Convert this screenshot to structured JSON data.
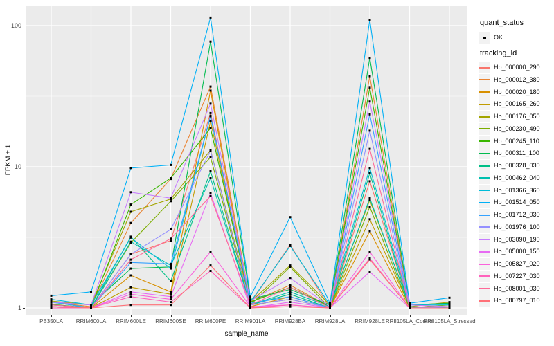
{
  "chart_data": {
    "type": "line",
    "title": "",
    "xlabel": "sample_name",
    "ylabel": "FPKM + 1",
    "y_scale": "log10",
    "y_ticks": [
      1,
      10,
      100
    ],
    "y_minor_gridlines": [
      3.162,
      31.62
    ],
    "ylim": [
      0.89,
      140
    ],
    "grid": "on",
    "panel_bg": "#EBEBEB",
    "grid_color": "#FFFFFF",
    "point_color": "#000000",
    "axis_text_color": "#4D4D4D",
    "legend_position": "right",
    "legend": {
      "quant_status": {
        "title": "quant_status",
        "entries": [
          "OK"
        ]
      },
      "tracking_id": {
        "title": "tracking_id"
      }
    },
    "categories": [
      "PB350LA",
      "RRIM600LA",
      "RRIM600LE",
      "RRIM600SE",
      "RRIM600PE",
      "RRIM901LA",
      "RRIM928BA",
      "RRIM928LA",
      "RRIM928LE",
      "RRII105LA_Control",
      "RRII105LA_Stressed"
    ],
    "series": [
      {
        "name": "Hb_000000_290",
        "color": "#F8766D",
        "values": [
          1.05,
          1.0,
          2.4,
          3.0,
          24.0,
          1.08,
          2.8,
          1.0,
          7.9,
          1.02,
          1.0
        ]
      },
      {
        "name": "Hb_000012_380",
        "color": "#EA8331",
        "values": [
          1.1,
          1.02,
          4.0,
          8.2,
          37.0,
          1.1,
          1.45,
          1.02,
          43.8,
          1.05,
          1.02
        ]
      },
      {
        "name": "Hb_000020_180",
        "color": "#D89000",
        "values": [
          1.02,
          1.0,
          1.7,
          1.3,
          34.6,
          1.02,
          1.2,
          1.0,
          3.5,
          1.0,
          1.0
        ]
      },
      {
        "name": "Hb_000165_260",
        "color": "#C09B00",
        "values": [
          1.05,
          1.0,
          1.4,
          1.25,
          21.0,
          1.05,
          1.15,
          1.0,
          4.25,
          1.02,
          1.1
        ]
      },
      {
        "name": "Hb_000176_050",
        "color": "#A3A500",
        "values": [
          1.12,
          1.05,
          4.8,
          5.9,
          13.1,
          1.1,
          2.0,
          1.05,
          5.8,
          1.05,
          1.08
        ]
      },
      {
        "name": "Hb_000230_490",
        "color": "#7CAE00",
        "values": [
          1.02,
          1.0,
          2.9,
          5.7,
          11.7,
          1.05,
          1.95,
          1.0,
          5.2,
          1.0,
          1.05
        ]
      },
      {
        "name": "Hb_000245_110",
        "color": "#39B600",
        "values": [
          1.06,
          1.0,
          5.4,
          8.3,
          18.8,
          1.1,
          1.4,
          1.02,
          36.3,
          1.02,
          1.0
        ]
      },
      {
        "name": "Hb_000311_100",
        "color": "#00BB4E",
        "values": [
          1.1,
          1.05,
          1.9,
          1.95,
          77.0,
          1.15,
          1.35,
          1.05,
          59.0,
          1.05,
          1.08
        ]
      },
      {
        "name": "Hb_000328_030",
        "color": "#00C087",
        "values": [
          1.05,
          1.0,
          3.2,
          1.55,
          9.3,
          1.05,
          1.25,
          1.0,
          9.0,
          1.0,
          1.02
        ]
      },
      {
        "name": "Hb_000462_040",
        "color": "#00C0AF",
        "values": [
          1.1,
          1.0,
          2.95,
          2.0,
          8.3,
          1.05,
          1.3,
          1.02,
          6.0,
          1.02,
          1.0
        ]
      },
      {
        "name": "Hb_001366_360",
        "color": "#00BCD8",
        "values": [
          1.15,
          1.05,
          3.15,
          1.9,
          22.8,
          1.1,
          2.75,
          1.05,
          9.8,
          1.05,
          1.05
        ]
      },
      {
        "name": "Hb_001514_050",
        "color": "#00B0F6",
        "values": [
          1.22,
          1.3,
          9.8,
          10.3,
          114.0,
          1.2,
          4.4,
          1.08,
          110.0,
          1.08,
          1.18
        ]
      },
      {
        "name": "Hb_001712_030",
        "color": "#35A2FF",
        "values": [
          1.1,
          1.0,
          2.1,
          2.05,
          23.0,
          1.08,
          1.2,
          1.0,
          23.5,
          1.02,
          1.0
        ]
      },
      {
        "name": "Hb_001976_100",
        "color": "#9590FF",
        "values": [
          1.05,
          1.0,
          2.4,
          3.6,
          13.0,
          1.05,
          1.15,
          1.0,
          18.0,
          1.0,
          1.02
        ]
      },
      {
        "name": "Hb_003090_190",
        "color": "#C77CFF",
        "values": [
          1.1,
          1.05,
          6.6,
          6.0,
          28.0,
          1.12,
          1.63,
          1.02,
          29.0,
          1.05,
          1.02
        ]
      },
      {
        "name": "Hb_005000_150",
        "color": "#E76BF3",
        "values": [
          1.0,
          1.0,
          1.3,
          1.2,
          6.5,
          1.0,
          1.1,
          1.0,
          1.8,
          1.0,
          1.0
        ]
      },
      {
        "name": "Hb_005827_020",
        "color": "#FA62DB",
        "values": [
          1.02,
          1.0,
          1.25,
          1.15,
          2.5,
          1.02,
          1.05,
          1.0,
          2.5,
          1.0,
          1.0
        ]
      },
      {
        "name": "Hb_007227_030",
        "color": "#FF62BC",
        "values": [
          1.0,
          1.0,
          1.2,
          1.1,
          1.83,
          1.0,
          1.05,
          1.0,
          2.25,
          1.0,
          1.0
        ]
      },
      {
        "name": "Hb_008001_030",
        "color": "#FF6A98",
        "values": [
          1.05,
          1.0,
          2.2,
          3.1,
          6.2,
          1.05,
          1.4,
          1.0,
          13.4,
          1.0,
          1.0
        ]
      },
      {
        "name": "Hb_080797_010",
        "color": "#FF7178",
        "values": [
          1.02,
          1.0,
          1.05,
          1.05,
          2.0,
          1.0,
          1.02,
          1.0,
          2.2,
          1.0,
          1.0
        ]
      }
    ]
  }
}
